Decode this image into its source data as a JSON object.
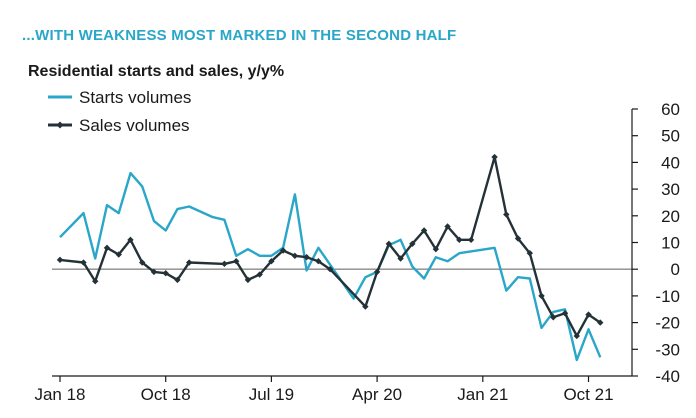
{
  "headline": "...WITH WEAKNESS MOST MARKED IN THE SECOND HALF",
  "colors": {
    "headline": "#2aa6c8",
    "starts": "#2aa6c8",
    "sales": "#243238",
    "zero_line": "#8a8a8a",
    "axis": "#1a1a1a"
  },
  "chart_data": {
    "type": "line",
    "title": "Residential starts and sales, y/y%",
    "xlabel": "",
    "ylabel": "",
    "ylim": [
      -40,
      60
    ],
    "yticks": [
      60,
      50,
      40,
      30,
      20,
      10,
      0,
      -10,
      -20,
      -30,
      -40
    ],
    "xlim": [
      0,
      47
    ],
    "xtick_positions": [
      0,
      9,
      18,
      27,
      36,
      45
    ],
    "xtick_labels": [
      "Jan 18",
      "Oct 18",
      "Jul 19",
      "Apr 20",
      "Jan 21",
      "Oct 21"
    ],
    "legend": [
      "Starts volumes",
      "Sales volumes"
    ],
    "series": [
      {
        "name": "Starts volumes",
        "marker": "none",
        "points": [
          [
            0,
            12
          ],
          [
            2,
            21
          ],
          [
            3,
            4
          ],
          [
            4,
            24
          ],
          [
            5,
            21
          ],
          [
            6,
            36
          ],
          [
            7,
            31
          ],
          [
            8,
            18
          ],
          [
            9,
            14.5
          ],
          [
            10,
            22.5
          ],
          [
            11,
            23.5
          ],
          [
            13,
            19.5
          ],
          [
            14,
            18.5
          ],
          [
            15,
            5
          ],
          [
            16,
            7.5
          ],
          [
            17,
            5
          ],
          [
            18,
            5
          ],
          [
            19,
            8
          ],
          [
            20,
            28
          ],
          [
            21,
            -0.5
          ],
          [
            22,
            8
          ],
          [
            25,
            -11
          ],
          [
            26,
            -3
          ],
          [
            27,
            -1
          ],
          [
            28,
            9
          ],
          [
            29,
            11
          ],
          [
            30,
            1
          ],
          [
            31,
            -3.5
          ],
          [
            32,
            4.5
          ],
          [
            33,
            3
          ],
          [
            34,
            6
          ],
          [
            37,
            8
          ],
          [
            38,
            -8
          ],
          [
            39,
            -3
          ],
          [
            40,
            -3.5
          ],
          [
            41,
            -22
          ],
          [
            42,
            -16
          ],
          [
            43,
            -15
          ],
          [
            44,
            -34
          ],
          [
            45,
            -22.5
          ],
          [
            46,
            -33
          ]
        ]
      },
      {
        "name": "Sales volumes",
        "marker": "diamond",
        "points": [
          [
            0,
            3.5
          ],
          [
            2,
            2.5
          ],
          [
            3,
            -4.5
          ],
          [
            4,
            8
          ],
          [
            5,
            5.5
          ],
          [
            6,
            11
          ],
          [
            7,
            2.5
          ],
          [
            8,
            -1
          ],
          [
            9,
            -1.5
          ],
          [
            10,
            -4
          ],
          [
            11,
            2.5
          ],
          [
            14,
            2
          ],
          [
            15,
            3
          ],
          [
            16,
            -4
          ],
          [
            17,
            -2
          ],
          [
            18,
            3
          ],
          [
            19,
            7
          ],
          [
            20,
            5
          ],
          [
            21,
            4.5
          ],
          [
            22,
            3
          ],
          [
            23,
            0
          ],
          [
            26,
            -14
          ],
          [
            27,
            -1
          ],
          [
            28,
            9.5
          ],
          [
            29,
            4
          ],
          [
            30,
            9.5
          ],
          [
            31,
            14.5
          ],
          [
            32,
            7.5
          ],
          [
            33,
            16
          ],
          [
            34,
            11
          ],
          [
            35,
            11
          ],
          [
            37,
            42
          ],
          [
            38,
            20.5
          ],
          [
            39,
            11.5
          ],
          [
            40,
            6
          ],
          [
            41,
            -10
          ],
          [
            42,
            -18
          ],
          [
            43,
            -16.5
          ],
          [
            44,
            -25
          ],
          [
            45,
            -17
          ],
          [
            46,
            -20
          ]
        ]
      }
    ]
  }
}
